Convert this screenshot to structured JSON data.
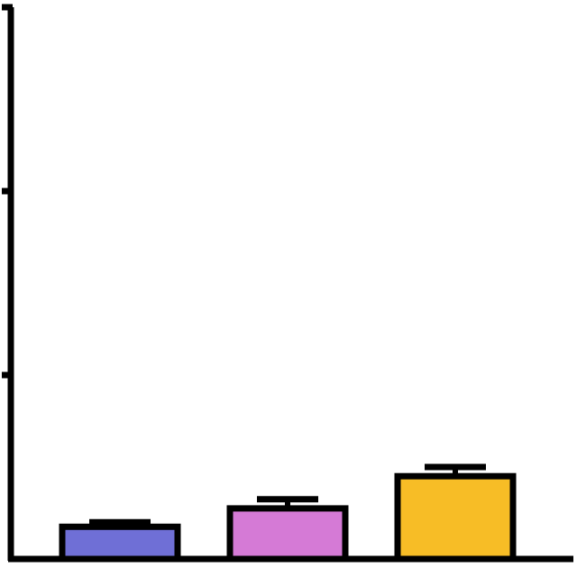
{
  "chart_data": {
    "type": "bar",
    "categories": [
      "",
      "",
      ""
    ],
    "values": [
      0.07,
      0.11,
      0.18
    ],
    "error_bars": [
      0.01,
      0.02,
      0.02
    ],
    "colors": [
      "#6f6fd6",
      "#d57ad6",
      "#f7bd26"
    ],
    "ylim": [
      0,
      1.2
    ],
    "yticks": [
      0,
      0.4,
      0.8,
      1.2
    ],
    "title": "",
    "xlabel": "",
    "ylabel": "",
    "grid": false,
    "legend": false
  },
  "colors": {
    "axis": "#000000",
    "background": "#ffffff"
  }
}
